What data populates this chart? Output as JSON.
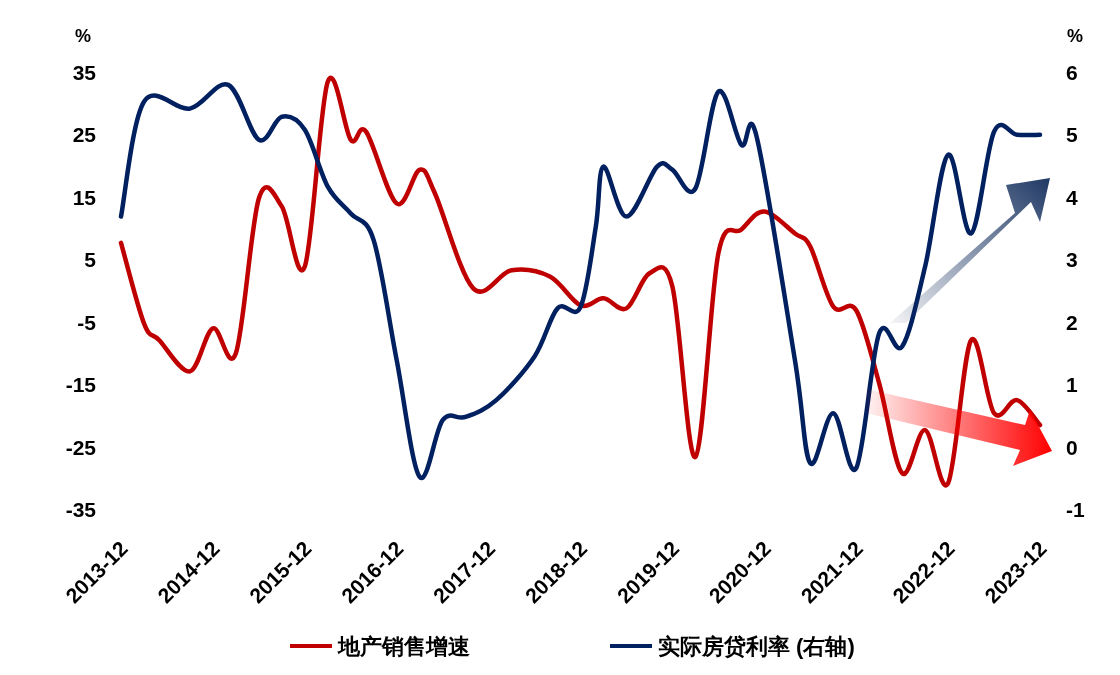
{
  "chart_data": {
    "type": "line",
    "ylabel": "%",
    "y2label": "%",
    "xlim": [
      "2013-12",
      "2023-12"
    ],
    "xticks": [
      "2013-12",
      "2014-12",
      "2015-12",
      "2016-12",
      "2017-12",
      "2018-12",
      "2019-12",
      "2020-12",
      "2021-12",
      "2022-12",
      "2023-12"
    ],
    "ylim": [
      -35,
      35
    ],
    "yticks": [
      -35,
      -25,
      -15,
      -5,
      5,
      15,
      25,
      35
    ],
    "y2lim": [
      -1,
      6
    ],
    "y2ticks": [
      -1,
      0,
      1,
      2,
      3,
      4,
      5,
      6
    ],
    "legend": "bottom",
    "series": [
      {
        "name": "地产销售增速",
        "color": "#c00000",
        "x": [
          "2013-12",
          "2014-03",
          "2014-05",
          "2014-09",
          "2014-12",
          "2015-03",
          "2015-06",
          "2015-09",
          "2015-12",
          "2016-03",
          "2016-06",
          "2016-08",
          "2016-12",
          "2017-03",
          "2017-05",
          "2017-10",
          "2018-03",
          "2018-08",
          "2018-12",
          "2019-03",
          "2019-06",
          "2019-09",
          "2019-12",
          "2020-03",
          "2020-06",
          "2020-09",
          "2020-12",
          "2021-04",
          "2021-06",
          "2021-09",
          "2021-12",
          "2022-03",
          "2022-06",
          "2022-09",
          "2022-12",
          "2023-03",
          "2023-06",
          "2023-09",
          "2023-12"
        ],
        "values": [
          7.8,
          -5.1,
          -7.8,
          -12.8,
          -5.9,
          -9.9,
          14.9,
          13.6,
          4.0,
          33.6,
          24.3,
          25.6,
          14.1,
          19.5,
          15.7,
          0.5,
          3.4,
          2.4,
          -2.2,
          -1.1,
          -2.7,
          2.9,
          0.8,
          -26.5,
          6.1,
          9.9,
          12.8,
          9.3,
          7.2,
          -2.4,
          -3.0,
          -14.7,
          -29.1,
          -22.2,
          -30.7,
          -7.8,
          -19.5,
          -17.4,
          -21.4
        ]
      },
      {
        "name": "实际房贷利率 (右轴)",
        "color": "#002060",
        "axis": "y2",
        "x": [
          "2013-12",
          "2014-03",
          "2014-09",
          "2015-02",
          "2015-06",
          "2015-09",
          "2015-12",
          "2016-03",
          "2016-06",
          "2016-09",
          "2016-12",
          "2017-03",
          "2017-06",
          "2017-09",
          "2018-01",
          "2018-06",
          "2018-09",
          "2018-12",
          "2019-02",
          "2019-03",
          "2019-06",
          "2019-10",
          "2019-12",
          "2020-03",
          "2020-06",
          "2020-09",
          "2020-11",
          "2021-04",
          "2021-06",
          "2021-09",
          "2021-12",
          "2022-03",
          "2022-06",
          "2022-09",
          "2022-12",
          "2023-03",
          "2023-06",
          "2023-09",
          "2023-12"
        ],
        "values": [
          3.7,
          5.54,
          5.43,
          5.81,
          4.93,
          5.3,
          5.09,
          4.18,
          3.75,
          3.32,
          1.4,
          -0.47,
          0.44,
          0.49,
          0.76,
          1.46,
          2.23,
          2.25,
          3.54,
          4.5,
          3.7,
          4.5,
          4.45,
          4.15,
          5.7,
          4.85,
          4.98,
          1.4,
          -0.25,
          0.55,
          -0.33,
          1.83,
          1.62,
          2.9,
          4.69,
          3.43,
          5.06,
          5.01,
          5.01
        ]
      }
    ]
  }
}
